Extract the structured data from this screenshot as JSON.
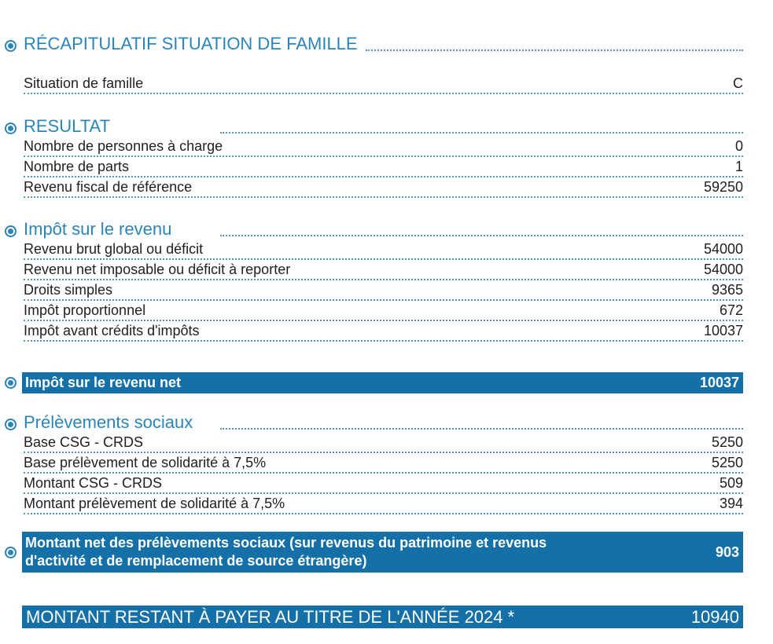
{
  "colors": {
    "header_blue": "#2b84b8",
    "bar_blue": "#1470a6",
    "dot_blue": "#5795c0",
    "text_dark": "#1f1f1f"
  },
  "icons": {
    "section_bullet": "radio-selected-circle"
  },
  "sections": {
    "recap": {
      "title": "RÉCAPITULATIF SITUATION DE FAMILLE",
      "rows": [
        {
          "label": "Situation de famille",
          "value": "C"
        }
      ]
    },
    "resultat": {
      "title": "RESULTAT",
      "rows": [
        {
          "label": "Nombre de personnes à charge",
          "value": "0"
        },
        {
          "label": "Nombre de parts",
          "value": "1"
        },
        {
          "label": "Revenu fiscal de référence",
          "value": "59250"
        }
      ]
    },
    "impot": {
      "title": "Impôt sur le revenu",
      "rows": [
        {
          "label": "Revenu brut global ou déficit",
          "value": "54000"
        },
        {
          "label": "Revenu net imposable ou déficit à reporter",
          "value": "54000"
        },
        {
          "label": "Droits simples",
          "value": "9365"
        },
        {
          "label": "Impôt proportionnel",
          "value": "672"
        },
        {
          "label": "Impôt avant crédits d'impôts",
          "value": "10037"
        }
      ]
    },
    "impot_net_bar": {
      "label": "Impôt sur le revenu net",
      "value": "10037"
    },
    "prelevements": {
      "title": "Prélèvements sociaux",
      "rows": [
        {
          "label": "Base CSG - CRDS",
          "value": "5250"
        },
        {
          "label": "Base prélèvement de solidarité à 7,5%",
          "value": "5250"
        },
        {
          "label": "Montant CSG - CRDS",
          "value": "509"
        },
        {
          "label": "Montant prélèvement de solidarité à 7,5%",
          "value": "394"
        }
      ]
    },
    "prelevements_net_bar": {
      "label": "Montant net des prélèvements sociaux (sur revenus du patrimoine et revenus d'activité et de remplacement de source étrangère)",
      "value": "903"
    },
    "total_bar": {
      "label": "MONTANT RESTANT À PAYER AU TITRE DE L'ANNÉE 2024 *",
      "value": "10940"
    }
  }
}
